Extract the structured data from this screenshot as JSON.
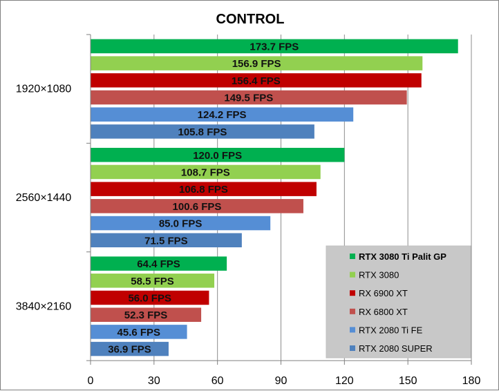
{
  "chart_data": {
    "type": "bar",
    "orientation": "horizontal",
    "title": "CONTROL",
    "categories": [
      "1920×1080",
      "2560×1440",
      "3840×2160"
    ],
    "series": [
      {
        "name": "RTX 3080 Ti Palit GP",
        "color": "#00b050",
        "values": [
          173.7,
          120.0,
          64.4
        ],
        "labels": [
          "173.7 FPS",
          "120.0 FPS",
          "64.4 FPS"
        ]
      },
      {
        "name": "RTX 3080",
        "color": "#92d050",
        "values": [
          156.9,
          108.7,
          58.5
        ],
        "labels": [
          "156.9 FPS",
          "108.7 FPS",
          "58.5 FPS"
        ]
      },
      {
        "name": "RX 6900 XT",
        "color": "#c00000",
        "values": [
          156.4,
          106.8,
          56.0
        ],
        "labels": [
          "156.4 FPS",
          "106.8 FPS",
          "56.0 FPS"
        ]
      },
      {
        "name": "RX 6800 XT",
        "color": "#c0504d",
        "values": [
          149.5,
          100.6,
          52.3
        ],
        "labels": [
          "149.5 FPS",
          "100.6 FPS",
          "52.3 FPS"
        ]
      },
      {
        "name": "RTX 2080 Ti FE",
        "color": "#558ed5",
        "values": [
          124.2,
          85.0,
          45.6
        ],
        "labels": [
          "124.2 FPS",
          "85.0 FPS",
          "45.6 FPS"
        ]
      },
      {
        "name": "RTX 2080 SUPER",
        "color": "#4f81bd",
        "values": [
          105.8,
          71.5,
          36.9
        ],
        "labels": [
          "105.8 FPS",
          "71.5 FPS",
          "36.9 FPS"
        ]
      }
    ],
    "xlim": [
      0,
      180
    ],
    "xticks": [
      0,
      30,
      60,
      90,
      120,
      150,
      180
    ],
    "grid": true,
    "legend_position": "bottom-right",
    "legend_bold_entry": "RTX 3080 Ti Palit GP"
  }
}
